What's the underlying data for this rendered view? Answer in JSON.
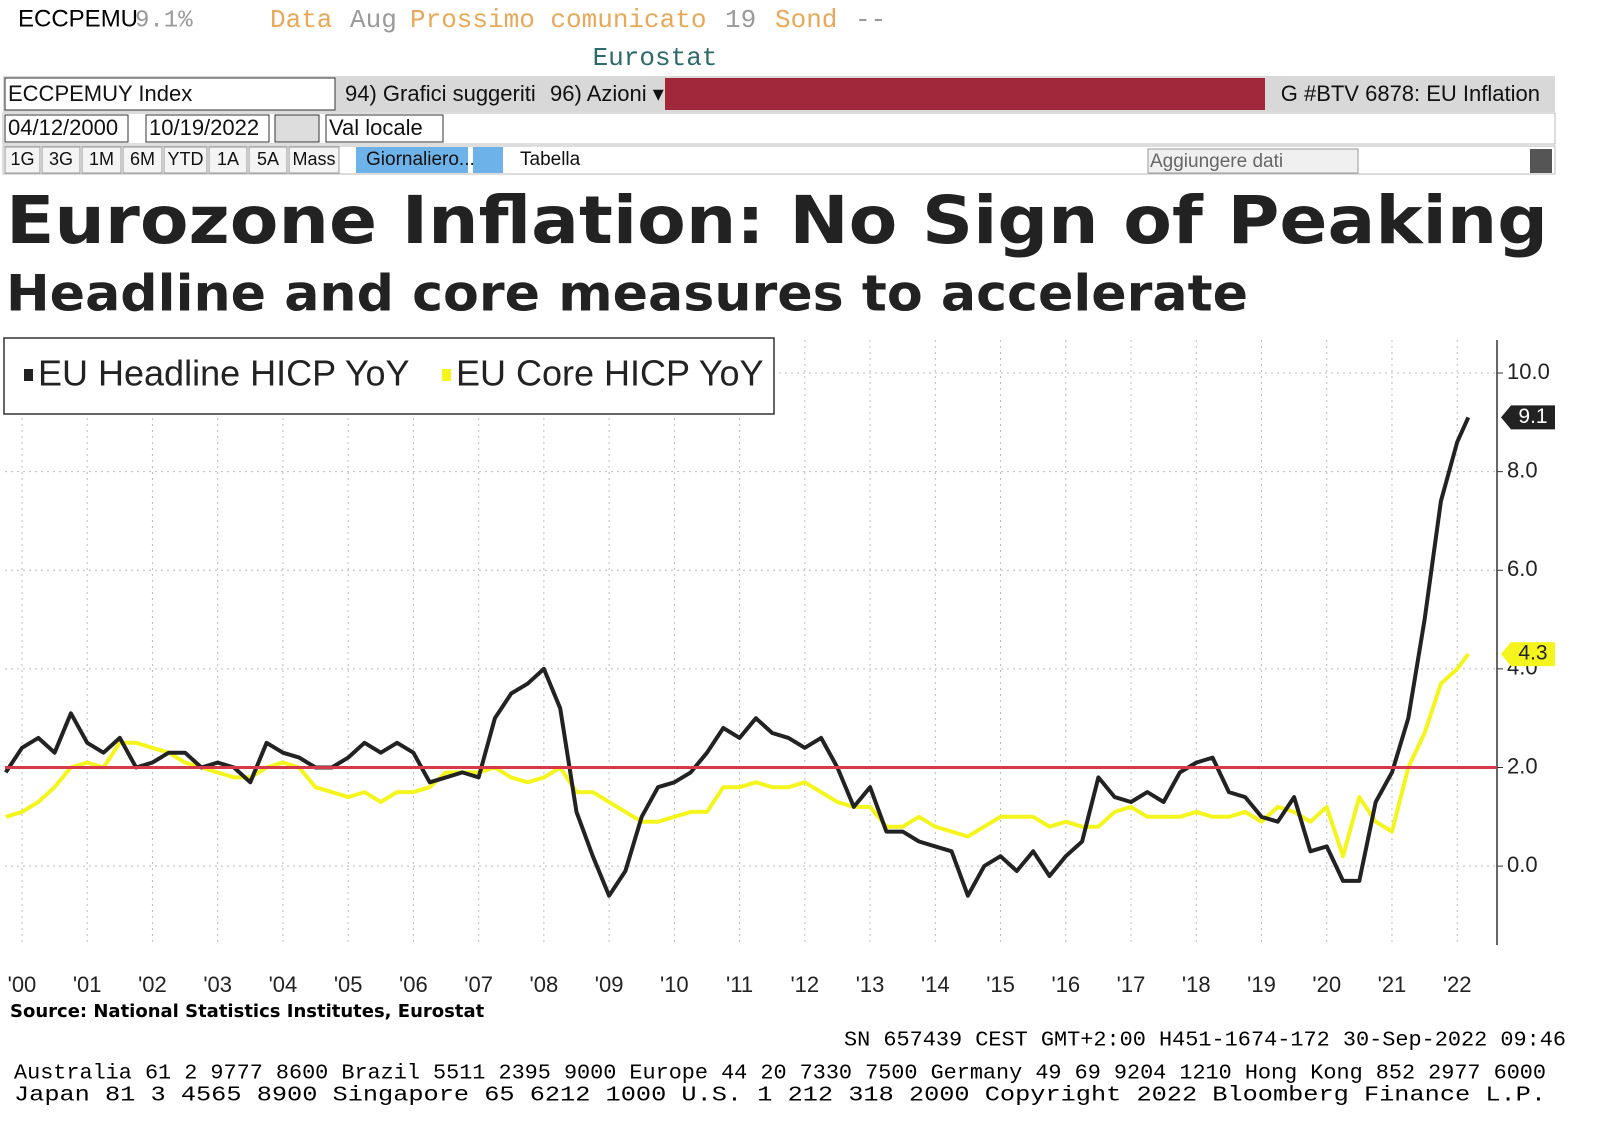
{
  "header": {
    "ticker": "ECCPEMU",
    "last": "9.1%",
    "data": "Data",
    "period": "Aug",
    "next": "Prossimo comunicato",
    "day": "19",
    "month": "Sond",
    "dash": "--",
    "source": "Eurostat"
  },
  "toolbar": {
    "security": "ECCPEMUY Index",
    "suggested": "94) Grafici suggeriti",
    "actions": "96) Azioni ▾",
    "page": "G #BTV 6878: EU Inflation",
    "start_date": "04/12/2000",
    "end_date": "10/19/2022",
    "currency": "Val locale",
    "periods": [
      "1G",
      "3G",
      "1M",
      "6M",
      "YTD",
      "1A",
      "5A",
      "Mass"
    ],
    "frequency": "Giornaliero...",
    "table": "Tabella",
    "add_data": "Aggiungere dati"
  },
  "chart_data": {
    "type": "line",
    "title": "Eurozone Inflation: No Sign of Peaking",
    "subtitle": "Headline and core measures to accelerate",
    "x": [
      2000.25,
      2000.5,
      2000.75,
      2001,
      2001.25,
      2001.5,
      2001.75,
      2002,
      2002.25,
      2002.5,
      2002.75,
      2003,
      2003.25,
      2003.5,
      2003.75,
      2004,
      2004.25,
      2004.5,
      2004.75,
      2005,
      2005.25,
      2005.5,
      2005.75,
      2006,
      2006.25,
      2006.5,
      2006.75,
      2007,
      2007.25,
      2007.5,
      2007.75,
      2008,
      2008.25,
      2008.5,
      2008.75,
      2009,
      2009.25,
      2009.5,
      2009.75,
      2010,
      2010.25,
      2010.5,
      2010.75,
      2011,
      2011.25,
      2011.5,
      2011.75,
      2012,
      2012.25,
      2012.5,
      2012.75,
      2013,
      2013.25,
      2013.5,
      2013.75,
      2014,
      2014.25,
      2014.5,
      2014.75,
      2015,
      2015.25,
      2015.5,
      2015.75,
      2016,
      2016.25,
      2016.5,
      2016.75,
      2017,
      2017.25,
      2017.5,
      2017.75,
      2018,
      2018.25,
      2018.5,
      2018.75,
      2019,
      2019.25,
      2019.5,
      2019.75,
      2020,
      2020.25,
      2020.5,
      2020.75,
      2021,
      2021.25,
      2021.5,
      2021.75,
      2022,
      2022.25,
      2022.5,
      2022.67
    ],
    "series": [
      {
        "name": "EU Headline HICP YoY",
        "color": "#222222",
        "values": [
          1.9,
          2.4,
          2.6,
          2.3,
          3.1,
          2.5,
          2.3,
          2.6,
          2.0,
          2.1,
          2.3,
          2.3,
          2.0,
          2.1,
          2.0,
          1.7,
          2.5,
          2.3,
          2.2,
          2.0,
          2.0,
          2.2,
          2.5,
          2.3,
          2.5,
          2.3,
          1.7,
          1.8,
          1.9,
          1.8,
          3.0,
          3.5,
          3.7,
          4.0,
          3.2,
          1.1,
          0.2,
          -0.6,
          -0.1,
          1.0,
          1.6,
          1.7,
          1.9,
          2.3,
          2.8,
          2.6,
          3.0,
          2.7,
          2.6,
          2.4,
          2.6,
          2.0,
          1.2,
          1.6,
          0.7,
          0.7,
          0.5,
          0.4,
          0.3,
          -0.6,
          0.0,
          0.2,
          -0.1,
          0.3,
          -0.2,
          0.2,
          0.5,
          1.8,
          1.4,
          1.3,
          1.5,
          1.3,
          1.9,
          2.1,
          2.2,
          1.5,
          1.4,
          1.0,
          0.9,
          1.4,
          0.3,
          0.4,
          -0.3,
          -0.3,
          1.3,
          1.9,
          3.0,
          5.0,
          7.4,
          8.6,
          9.1
        ]
      },
      {
        "name": "EU Core HICP YoY",
        "color": "#f5f51e",
        "values": [
          1.0,
          1.1,
          1.3,
          1.6,
          2.0,
          2.1,
          2.0,
          2.5,
          2.5,
          2.4,
          2.3,
          2.1,
          2.0,
          1.9,
          1.8,
          1.8,
          2.0,
          2.1,
          2.0,
          1.6,
          1.5,
          1.4,
          1.5,
          1.3,
          1.5,
          1.5,
          1.6,
          1.9,
          1.9,
          1.9,
          2.0,
          1.8,
          1.7,
          1.8,
          2.0,
          1.5,
          1.5,
          1.3,
          1.1,
          0.9,
          0.9,
          1.0,
          1.1,
          1.1,
          1.6,
          1.6,
          1.7,
          1.6,
          1.6,
          1.7,
          1.5,
          1.3,
          1.2,
          1.2,
          0.8,
          0.8,
          1.0,
          0.8,
          0.7,
          0.6,
          0.8,
          1.0,
          1.0,
          1.0,
          0.8,
          0.9,
          0.8,
          0.8,
          1.1,
          1.2,
          1.0,
          1.0,
          1.0,
          1.1,
          1.0,
          1.0,
          1.1,
          0.9,
          1.2,
          1.1,
          0.9,
          1.2,
          0.2,
          1.4,
          0.9,
          0.7,
          2.0,
          2.7,
          3.7,
          4.0,
          4.3
        ]
      }
    ],
    "reference_line": 2.0,
    "reference_color": "#d63a4a",
    "xlim": [
      2000.24,
      2023.11
    ],
    "xticks": [
      {
        "value": 2000.5,
        "label": "'00"
      },
      {
        "value": 2001.5,
        "label": "'01"
      },
      {
        "value": 2002.5,
        "label": "'02"
      },
      {
        "value": 2003.5,
        "label": "'03"
      },
      {
        "value": 2004.5,
        "label": "'04"
      },
      {
        "value": 2005.5,
        "label": "'05"
      },
      {
        "value": 2006.5,
        "label": "'06"
      },
      {
        "value": 2007.5,
        "label": "'07"
      },
      {
        "value": 2008.5,
        "label": "'08"
      },
      {
        "value": 2009.5,
        "label": "'09"
      },
      {
        "value": 2010.5,
        "label": "'10"
      },
      {
        "value": 2011.5,
        "label": "'11"
      },
      {
        "value": 2012.5,
        "label": "'12"
      },
      {
        "value": 2013.5,
        "label": "'13"
      },
      {
        "value": 2014.5,
        "label": "'14"
      },
      {
        "value": 2015.5,
        "label": "'15"
      },
      {
        "value": 2016.5,
        "label": "'16"
      },
      {
        "value": 2017.5,
        "label": "'17"
      },
      {
        "value": 2018.5,
        "label": "'18"
      },
      {
        "value": 2019.5,
        "label": "'19"
      },
      {
        "value": 2020.5,
        "label": "'20"
      },
      {
        "value": 2021.5,
        "label": "'21"
      },
      {
        "value": 2022.5,
        "label": "'22"
      }
    ],
    "ylim": [
      -1.6,
      10.67
    ],
    "yticks": [
      {
        "value": 0,
        "label": "0.0"
      },
      {
        "value": 2,
        "label": "2.0"
      },
      {
        "value": 4,
        "label": "4.0"
      },
      {
        "value": 6,
        "label": "6.0"
      },
      {
        "value": 8,
        "label": "8.0"
      },
      {
        "value": 10,
        "label": "10.0"
      }
    ],
    "grid": true,
    "legend": "top-left",
    "source": "Source: National Statistics Institutes, Eurostat"
  },
  "footer": {
    "session": "SN 657439 CEST GMT+2:00 H451-1674-172 30-Sep-2022 09:46",
    "contacts1": "Australia 61 2 9777 8600 Brazil 5511 2395 9000 Europe 44 20 7330 7500 Germany 49 69 9204 1210 Hong Kong 852 2977 6000",
    "contacts2": "Japan 81 3 4565 8900       Singapore 65 6212 1000      U.S. 1 212 318 2000        Copyright 2022 Bloomberg Finance L.P."
  }
}
